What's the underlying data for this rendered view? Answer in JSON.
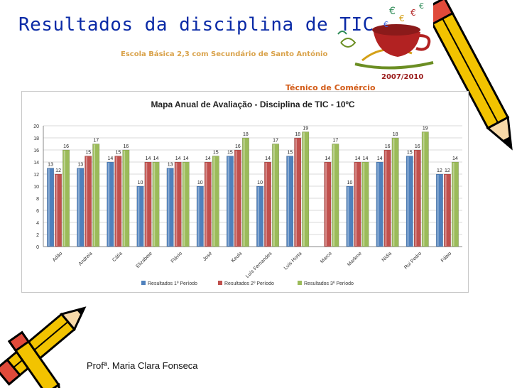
{
  "slide": {
    "title": "Resultados da disciplina de TIC",
    "school": "Escola Básica 2,3 com Secundário de Santo António",
    "year": "2007/2010",
    "course": "Técnico de Comércio",
    "teacher": "Profª. Maria Clara Fonseca"
  },
  "icons": [
    "pencil-icon-top-right",
    "pencil-icon-bottom-left",
    "teacup-money-clipart-icon"
  ],
  "colors": {
    "title": "#0a2aa6",
    "series1": "#4f81bd",
    "series2": "#c0504d",
    "series3": "#9bbb59"
  },
  "chart_data": {
    "type": "bar",
    "title": "Mapa Anual de Avaliação - Disciplina de TIC - 10ºC",
    "categories": [
      "Adão",
      "Andreia",
      "Cátia",
      "Elizabete",
      "Flávio",
      "José",
      "Keula",
      "Luís Fernandes",
      "Luís Horta",
      "Marco",
      "Marlene",
      "Nídia",
      "Rui Pedro",
      "Fábio"
    ],
    "series": [
      {
        "name": "Resultados 1º Período",
        "values": [
          13,
          13,
          14,
          10,
          13,
          10,
          15,
          10,
          15,
          null,
          10,
          14,
          15,
          12
        ]
      },
      {
        "name": "Resultados 2º Período",
        "values": [
          12,
          15,
          15,
          14,
          14,
          14,
          16,
          14,
          18,
          14,
          14,
          16,
          16,
          12
        ]
      },
      {
        "name": "Resultados 3º Período",
        "values": [
          16,
          17,
          16,
          14,
          14,
          15,
          18,
          17,
          19,
          17,
          14,
          18,
          19,
          14
        ]
      }
    ],
    "yticks": [
      0,
      2,
      4,
      6,
      8,
      10,
      12,
      14,
      16,
      18,
      20
    ],
    "ylim": [
      0,
      20
    ],
    "grid": true,
    "legend": "bottom"
  }
}
